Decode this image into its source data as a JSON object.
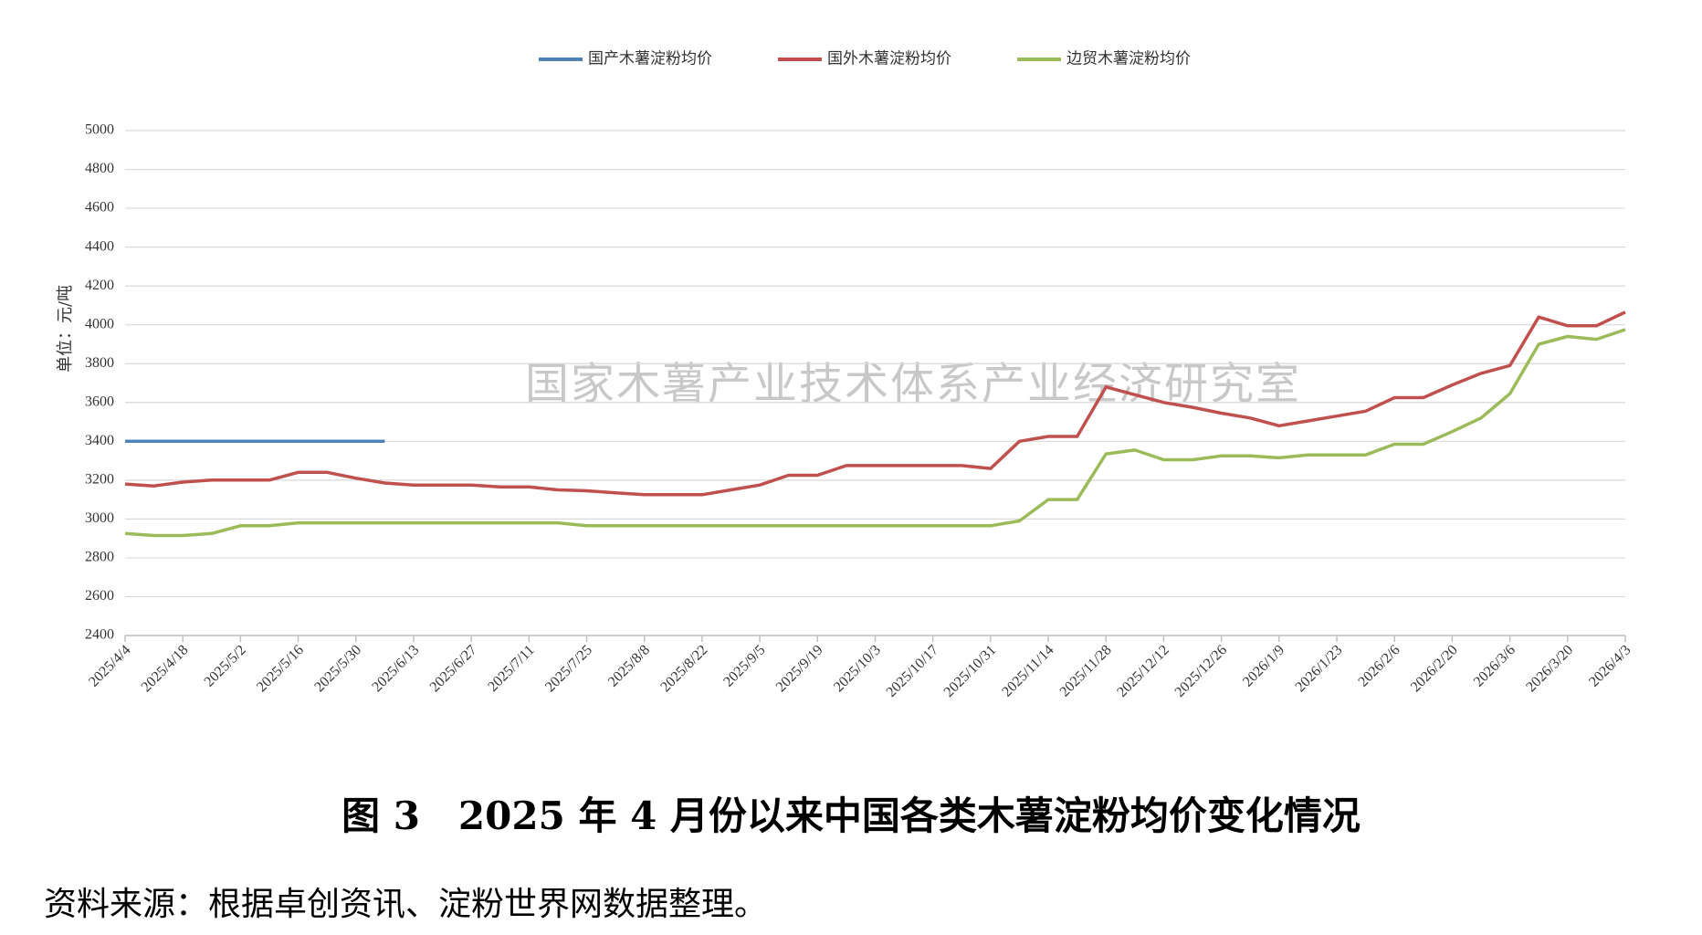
{
  "chart_data": {
    "type": "line",
    "title": "图 3　2025 年 4 月份以来中国各类木薯淀粉均价变化情况",
    "source": "资料来源：根据卓创资讯、淀粉世界网数据整理。",
    "watermark": "国家木薯产业技术体系产业经济研究室",
    "y_label": "单位：元/吨",
    "categories": [
      "2025/4/4",
      null,
      "2025/4/18",
      null,
      "2025/5/2",
      null,
      "2025/5/16",
      null,
      "2025/5/30",
      null,
      "2025/6/13",
      null,
      "2025/6/27",
      null,
      "2025/7/11",
      null,
      "2025/7/25",
      null,
      "2025/8/8",
      null,
      "2025/8/22",
      null,
      "2025/9/5",
      null,
      "2025/9/19",
      null,
      "2025/10/3",
      null,
      "2025/10/17",
      null,
      "2025/10/31",
      null,
      "2025/11/14",
      null,
      "2025/11/28",
      null,
      "2025/12/12",
      null,
      "2025/12/26",
      null,
      "2026/1/9",
      null,
      "2026/1/23",
      null,
      "2026/2/6",
      null,
      "2026/2/20",
      null,
      "2026/3/6",
      null,
      "2026/3/20",
      null,
      "2026/4/3"
    ],
    "series": [
      {
        "name": "国产木薯淀粉均价",
        "color": "#4f81bd",
        "values": [
          3400,
          3400,
          3400,
          3400,
          3400,
          3400,
          3400,
          3400,
          3400,
          3400,
          null,
          null,
          null,
          null,
          null,
          null,
          null,
          null,
          null,
          null,
          null,
          null,
          null,
          null,
          null,
          null,
          null,
          null,
          null,
          null,
          null,
          null,
          null,
          null,
          null,
          null,
          null,
          null,
          null,
          null,
          null,
          null,
          null,
          null,
          null,
          null,
          null,
          null,
          null,
          null,
          null,
          null,
          null
        ]
      },
      {
        "name": "国外木薯淀粉均价",
        "color": "#c0504d",
        "values": [
          3180,
          3170,
          3190,
          3200,
          3200,
          3200,
          3240,
          3240,
          3210,
          3185,
          3175,
          3175,
          3175,
          3165,
          3165,
          3150,
          3145,
          3135,
          3125,
          3125,
          3125,
          3150,
          3175,
          3225,
          3225,
          3275,
          3275,
          3275,
          3275,
          3275,
          3260,
          3400,
          3425,
          3425,
          3680,
          3640,
          3600,
          3575,
          3545,
          3520,
          3480,
          3505,
          3530,
          3555,
          3625,
          3625,
          3690,
          3750,
          3790,
          4040,
          3995,
          3995,
          4065
        ]
      },
      {
        "name": "边贸木薯淀粉均价",
        "color": "#9bbb59",
        "values": [
          2925,
          2915,
          2915,
          2925,
          2965,
          2965,
          2980,
          2980,
          2980,
          2980,
          2980,
          2980,
          2980,
          2980,
          2980,
          2980,
          2965,
          2965,
          2965,
          2965,
          2965,
          2965,
          2965,
          2965,
          2965,
          2965,
          2965,
          2965,
          2965,
          2965,
          2965,
          2990,
          3100,
          3100,
          3335,
          3355,
          3305,
          3305,
          3325,
          3325,
          3315,
          3330,
          3330,
          3330,
          3385,
          3385,
          3450,
          3520,
          3645,
          3900,
          3940,
          3925,
          3975
        ]
      }
    ],
    "ylim": [
      2400,
      5000
    ],
    "yticks": [
      2400,
      2600,
      2800,
      3000,
      3200,
      3400,
      3600,
      3800,
      4000,
      4200,
      4400,
      4600,
      4800,
      5000
    ],
    "grid": true,
    "legend": "top"
  }
}
